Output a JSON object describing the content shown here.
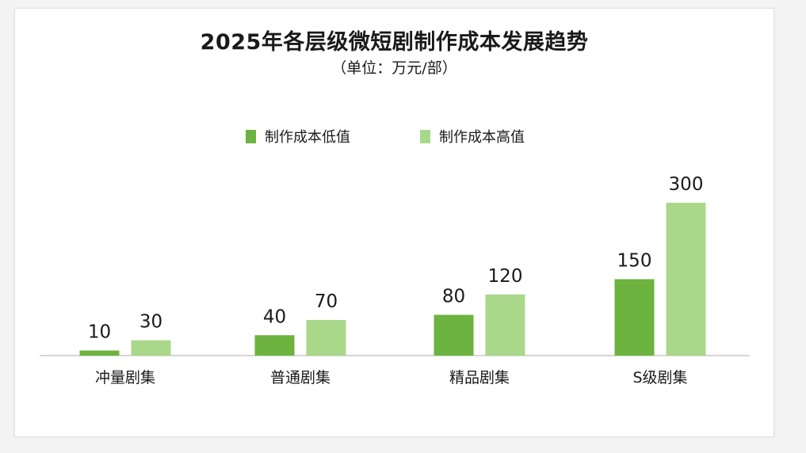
{
  "chart_data": {
    "type": "bar",
    "title": "2025年各层级微短剧制作成本发展趋势",
    "subtitle": "（单位：万元/部）",
    "categories": [
      "冲量剧集",
      "普通剧集",
      "精品剧集",
      "S级剧集"
    ],
    "series": [
      {
        "name": "制作成本低值",
        "color": "#6cb33f",
        "values": [
          10,
          40,
          80,
          150
        ]
      },
      {
        "name": "制作成本高值",
        "color": "#a9d88a",
        "values": [
          30,
          70,
          120,
          300
        ]
      }
    ],
    "ylim": [
      0,
      330
    ],
    "legend": "top-center",
    "grid": false
  }
}
